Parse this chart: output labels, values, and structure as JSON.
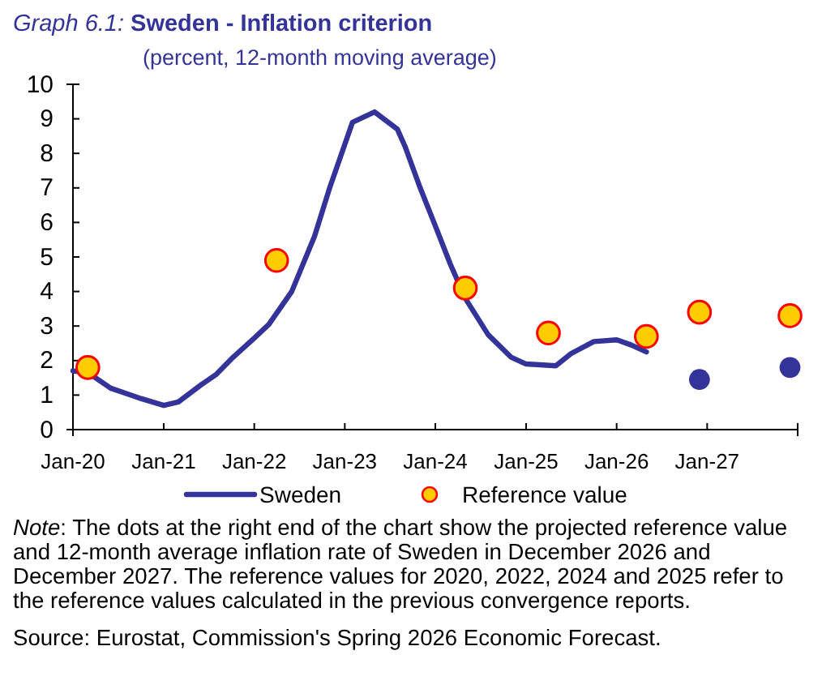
{
  "chart_data": {
    "type": "line",
    "title": "Graph 6.1: Sweden - Inflation criterion",
    "subtitle": "(percent, 12-month moving average)",
    "xlim": [
      "2020-01",
      "2028-01"
    ],
    "xticks": [
      {
        "value": "2020-01",
        "label": "Jan-20"
      },
      {
        "value": "2021-01",
        "label": "Jan-21"
      },
      {
        "value": "2022-01",
        "label": "Jan-22"
      },
      {
        "value": "2023-01",
        "label": "Jan-23"
      },
      {
        "value": "2024-01",
        "label": "Jan-24"
      },
      {
        "value": "2025-01",
        "label": "Jan-25"
      },
      {
        "value": "2026-01",
        "label": "Jan-26"
      },
      {
        "value": "2027-01",
        "label": "Jan-27"
      },
      {
        "value": "2028-01",
        "label": null
      }
    ],
    "ylim": [
      0,
      10
    ],
    "yticks": [
      0,
      1,
      2,
      3,
      4,
      5,
      6,
      7,
      8,
      9,
      10
    ],
    "grid": false,
    "legend": "bottom",
    "series": [
      {
        "name": "Sweden",
        "color": "#333399",
        "marker": "none",
        "x": [
          "2020-01",
          "2020-03",
          "2020-06",
          "2020-08",
          "2020-10",
          "2021-01",
          "2021-03",
          "2021-06",
          "2021-08",
          "2021-10",
          "2022-01",
          "2022-03",
          "2022-06",
          "2022-09",
          "2022-11",
          "2023-02",
          "2023-05",
          "2023-08",
          "2023-09",
          "2023-11",
          "2024-01",
          "2024-03",
          "2024-05",
          "2024-08",
          "2024-11",
          "2025-01",
          "2025-05",
          "2025-07",
          "2025-10",
          "2026-01",
          "2026-03",
          "2026-05"
        ],
        "values": [
          1.7,
          1.65,
          1.2,
          1.05,
          0.9,
          0.7,
          0.8,
          1.3,
          1.6,
          2.05,
          2.65,
          3.05,
          4.0,
          5.6,
          7.0,
          8.9,
          9.2,
          8.7,
          8.2,
          7.0,
          5.9,
          4.8,
          3.8,
          2.75,
          2.1,
          1.9,
          1.85,
          2.2,
          2.55,
          2.6,
          2.45,
          2.25
        ]
      },
      {
        "type": "scatter",
        "color": "#333399",
        "marker": "circle",
        "x": [
          "2026-12",
          "2027-12"
        ],
        "values": [
          1.45,
          1.8
        ]
      },
      {
        "name": "Reference value",
        "type": "scatter",
        "color": "#ffcc00",
        "marker": "circle",
        "x": [
          "2020-03",
          "2022-04",
          "2024-05",
          "2025-04",
          "2026-05",
          "2026-12",
          "2027-12"
        ],
        "values": [
          1.8,
          4.9,
          4.1,
          2.8,
          2.7,
          3.4,
          3.3
        ]
      }
    ],
    "annotations": [
      "Note: The dots at the right end of the chart show the projected reference value and 12-month average inflation rate of Sweden in December 2026 and December 2027. The reference values for 2020, 2022, 2024 and 2025 refer to the reference values calculated in the previous convergence reports.",
      "Source: Eurostat, Commission's Spring 2026 Economic Forecast."
    ]
  }
}
